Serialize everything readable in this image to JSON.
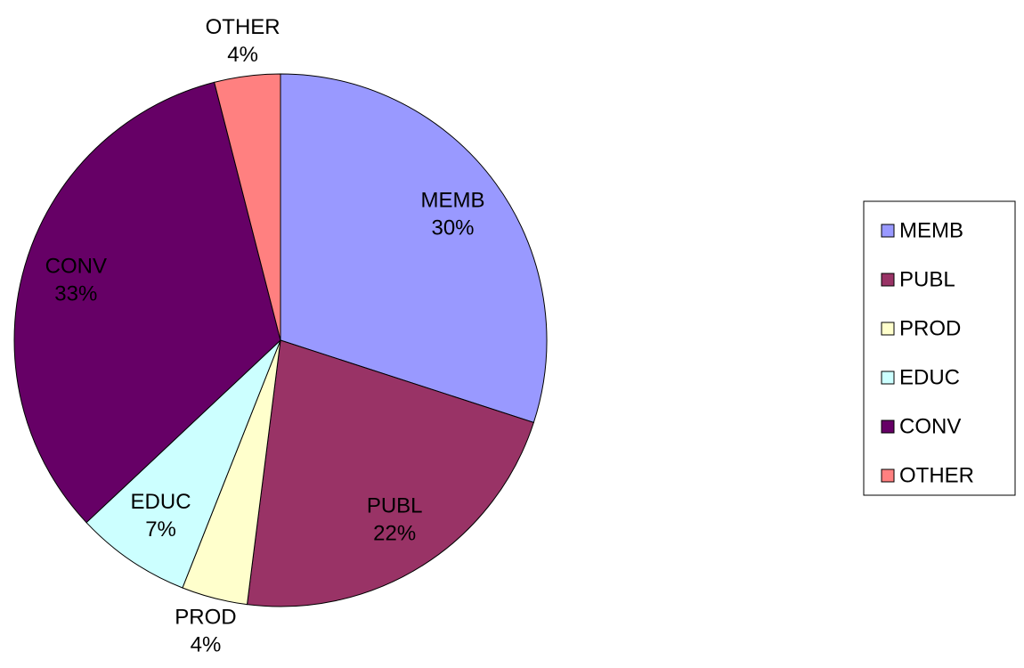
{
  "chart_data": {
    "type": "pie",
    "categories": [
      "MEMB",
      "PUBL",
      "PROD",
      "EDUC",
      "CONV",
      "OTHER"
    ],
    "values": [
      30,
      22,
      4,
      7,
      33,
      4
    ],
    "value_labels": [
      "30%",
      "22%",
      "4%",
      "7%",
      "33%",
      "4%"
    ],
    "colors": [
      "#9999ff",
      "#993366",
      "#ffffcc",
      "#ccffff",
      "#660066",
      "#ff8080"
    ],
    "legend": "right"
  }
}
